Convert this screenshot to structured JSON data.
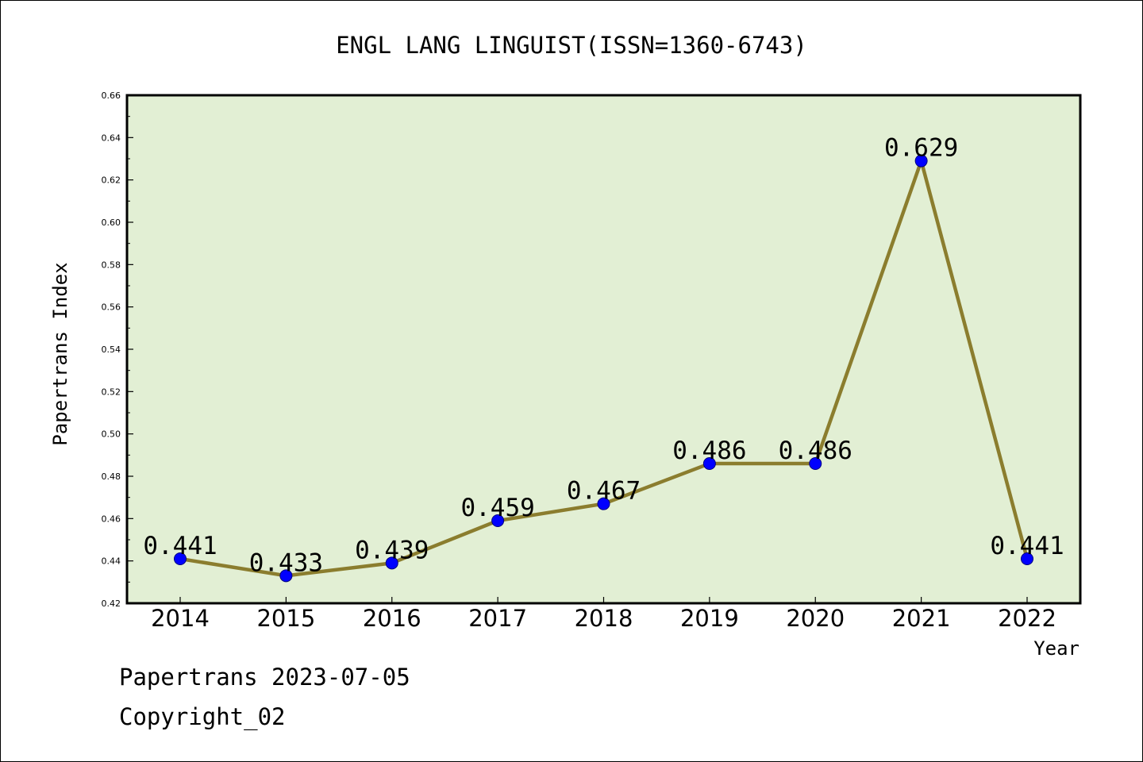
{
  "chart_data": {
    "type": "line",
    "title": "ENGL LANG LINGUIST(ISSN=1360-6743)",
    "xlabel": "Year",
    "ylabel": "Papertrans Index",
    "categories": [
      "2014",
      "2015",
      "2016",
      "2017",
      "2018",
      "2019",
      "2020",
      "2021",
      "2022"
    ],
    "series": [
      {
        "values": [
          0.441,
          0.433,
          0.439,
          0.459,
          0.467,
          0.486,
          0.486,
          0.629,
          0.441
        ],
        "data_labels": [
          "0.441",
          "0.433",
          "0.439",
          "0.459",
          "0.467",
          "0.486",
          "0.486",
          "0.629",
          "0.441"
        ]
      }
    ],
    "ylim": [
      0.42,
      0.66
    ],
    "yticks": [
      "0.42",
      "0.44",
      "0.46",
      "0.48",
      "0.50",
      "0.52",
      "0.54",
      "0.56",
      "0.58",
      "0.60",
      "0.62",
      "0.64",
      "0.66"
    ],
    "grid": false,
    "legend": "none",
    "colors": {
      "plot_background": "#e2efd4",
      "line": "#8b7d2e",
      "marker": "#0000ff",
      "axis": "#000000"
    }
  },
  "footer": {
    "line1": "Papertrans 2023-07-05",
    "line2": "Copyright_02"
  }
}
